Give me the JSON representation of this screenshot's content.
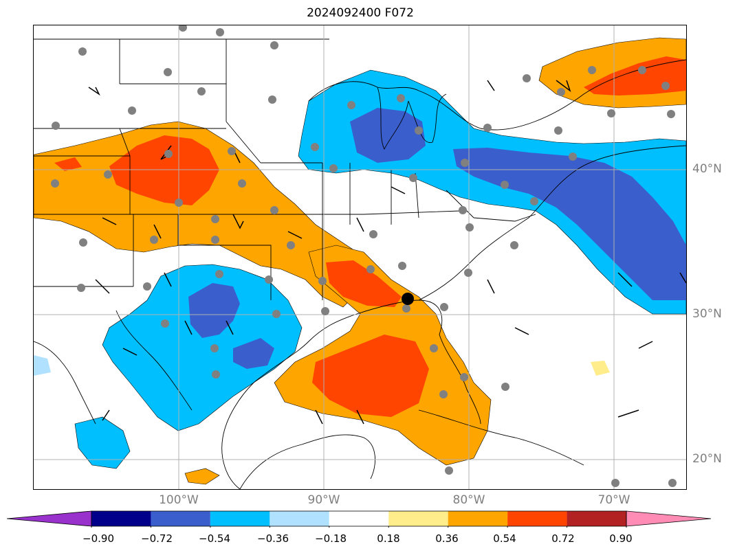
{
  "title": "2024092400 F072",
  "latitude_labels": [
    "40°N",
    "30°N",
    "20°N"
  ],
  "longitude_labels": [
    "100°W",
    "90°W",
    "80°W",
    "70°W"
  ],
  "colorbar": {
    "tick_labels": [
      "−0.90",
      "−0.72",
      "−0.54",
      "−0.36",
      "−0.18",
      "0.18",
      "0.36",
      "0.54",
      "0.72",
      "0.90"
    ],
    "colors": [
      "#9932cc",
      "#00008b",
      "#3a5fcd",
      "#00bfff",
      "#b0e2ff",
      "#ffffff",
      "#ffec8b",
      "#ffa500",
      "#ff4500",
      "#b22222",
      "#ff8cb4"
    ]
  },
  "map_colors": {
    "grid": "#b0b0b0",
    "station_dot": "#808080",
    "highlight_dot": "#000000"
  }
}
